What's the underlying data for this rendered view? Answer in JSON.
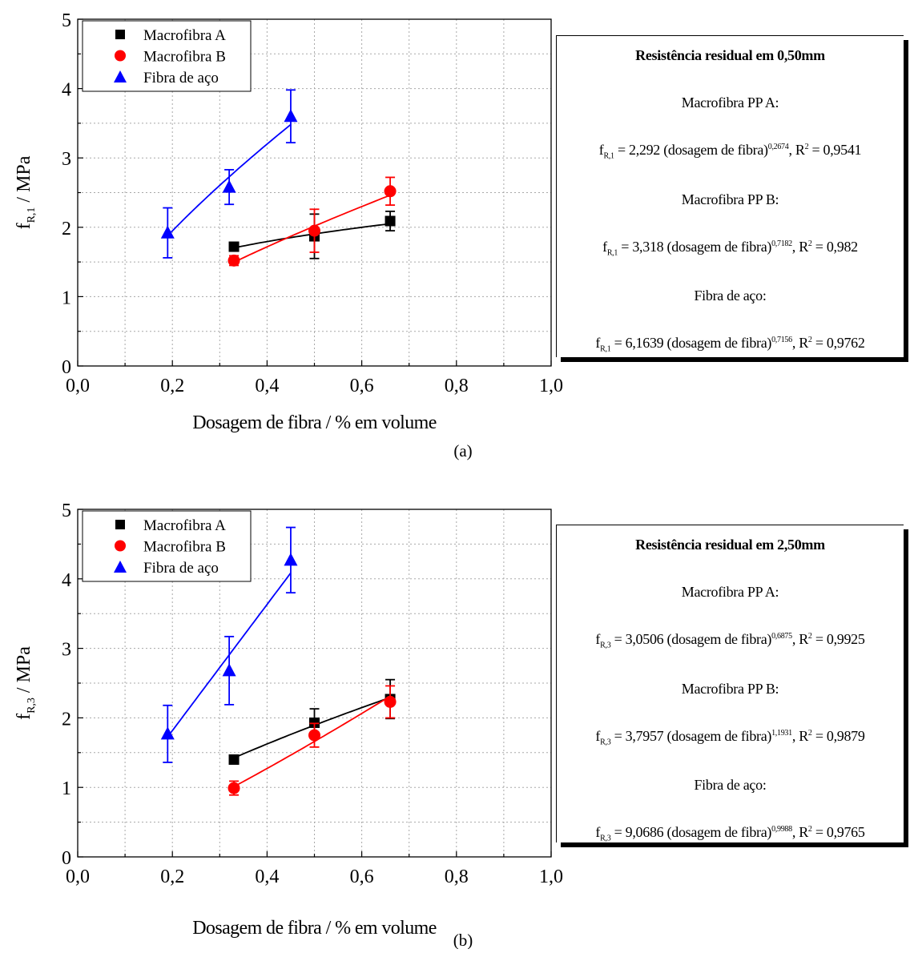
{
  "chart_data": [
    {
      "type": "scatter",
      "caption": "(a)",
      "xlabel": "Dosagem de fibra / % em volume",
      "ylabel": {
        "base": "f",
        "sub": "R,1",
        "rest": " / MPa"
      },
      "xlim": [
        0.0,
        1.0
      ],
      "ylim": [
        0,
        5
      ],
      "x_ticks": [
        "0,0",
        "0,2",
        "0,4",
        "0,6",
        "0,8",
        "1,0"
      ],
      "y_ticks": [
        "0",
        "1",
        "2",
        "3",
        "4",
        "5"
      ],
      "grid": true,
      "legend_position": "top-left",
      "series": [
        {
          "name": "Macrofibra A",
          "color": "#000000",
          "marker": "square",
          "x": [
            0.33,
            0.5,
            0.66
          ],
          "y": [
            1.72,
            1.87,
            2.09
          ],
          "err": [
            0.05,
            0.32,
            0.14
          ],
          "fit": {
            "coef": 2.292,
            "exp": 0.2674
          }
        },
        {
          "name": "Macrofibra B",
          "color": "#ff0000",
          "marker": "circle",
          "x": [
            0.33,
            0.5,
            0.66
          ],
          "y": [
            1.52,
            1.95,
            2.52
          ],
          "err": [
            0.07,
            0.31,
            0.2
          ],
          "fit": {
            "coef": 3.318,
            "exp": 0.7182
          }
        },
        {
          "name": "Fibra de aço",
          "color": "#0000ff",
          "marker": "triangle",
          "x": [
            0.19,
            0.32,
            0.45
          ],
          "y": [
            1.92,
            2.58,
            3.6
          ],
          "err": [
            0.36,
            0.25,
            0.38
          ],
          "fit": {
            "coef": 6.1639,
            "exp": 0.7156
          }
        }
      ],
      "box": {
        "title": "Resistência residual em 0,50mm",
        "head_a": "Macrofibra PP A:",
        "eq_a": {
          "f": "f",
          "sub": "R,1",
          "mid": " = 2,292 (dosagem de fibra)",
          "sup": "0,2674",
          "r": ", R",
          "r_sup": "2",
          "end": " = 0,9541"
        },
        "head_b": "Macrofibra PP B:",
        "eq_b": {
          "f": "f",
          "sub": "R,1",
          "mid": " = 3,318 (dosagem de fibra)",
          "sup": "0,7182",
          "r": ", R",
          "r_sup": "2",
          "end": " = 0,982"
        },
        "head_c": "Fibra de aço:",
        "eq_c": {
          "f": "f",
          "sub": "R,1",
          "mid": " = 6,1639 (dosagem de fibra)",
          "sup": "0,7156",
          "r": ", R",
          "r_sup": "2",
          "end": " = 0,9762"
        }
      }
    },
    {
      "type": "scatter",
      "caption": "(b)",
      "xlabel": "Dosagem de fibra / % em volume",
      "ylabel": {
        "base": "f",
        "sub": "R,3",
        "rest": " / MPa"
      },
      "xlim": [
        0.0,
        1.0
      ],
      "ylim": [
        0,
        5
      ],
      "x_ticks": [
        "0,0",
        "0,2",
        "0,4",
        "0,6",
        "0,8",
        "1,0"
      ],
      "y_ticks": [
        "0",
        "1",
        "2",
        "3",
        "4",
        "5"
      ],
      "grid": true,
      "legend_position": "top-left",
      "series": [
        {
          "name": "Macrofibra A",
          "color": "#000000",
          "marker": "square",
          "x": [
            0.33,
            0.5,
            0.66
          ],
          "y": [
            1.4,
            1.93,
            2.27
          ],
          "err": [
            0.06,
            0.2,
            0.28
          ],
          "fit": {
            "coef": 3.0506,
            "exp": 0.6875
          }
        },
        {
          "name": "Macrofibra B",
          "color": "#ff0000",
          "marker": "circle",
          "x": [
            0.33,
            0.5,
            0.66
          ],
          "y": [
            0.99,
            1.75,
            2.23
          ],
          "err": [
            0.1,
            0.17,
            0.23
          ],
          "fit": {
            "coef": 3.7957,
            "exp": 1.1931
          }
        },
        {
          "name": "Fibra de aço",
          "color": "#0000ff",
          "marker": "triangle",
          "x": [
            0.19,
            0.32,
            0.45
          ],
          "y": [
            1.77,
            2.68,
            4.27
          ],
          "err": [
            0.41,
            0.49,
            0.47
          ],
          "fit": {
            "coef": 9.0686,
            "exp": 0.9988
          }
        }
      ],
      "box": {
        "title": "Resistência residual em 2,50mm",
        "head_a": "Macrofibra PP A:",
        "eq_a": {
          "f": "f",
          "sub": "R,3",
          "mid": " = 3,0506 (dosagem de fibra)",
          "sup": "0,6875",
          "r": ", R",
          "r_sup": "2",
          "end": " = 0,9925"
        },
        "head_b": "Macrofibra PP B:",
        "eq_b": {
          "f": "f",
          "sub": "R,3",
          "mid": " = 3,7957 (dosagem de fibra)",
          "sup": "1,1931",
          "r": ", R",
          "r_sup": "2",
          "end": " = 0,9879"
        },
        "head_c": "Fibra de aço:",
        "eq_c": {
          "f": "f",
          "sub": "R,3",
          "mid": " = 9,0686 (dosagem de fibra)",
          "sup": "0,9988",
          "r": ", R",
          "r_sup": "2",
          "end": " = 0,9765"
        }
      }
    }
  ]
}
